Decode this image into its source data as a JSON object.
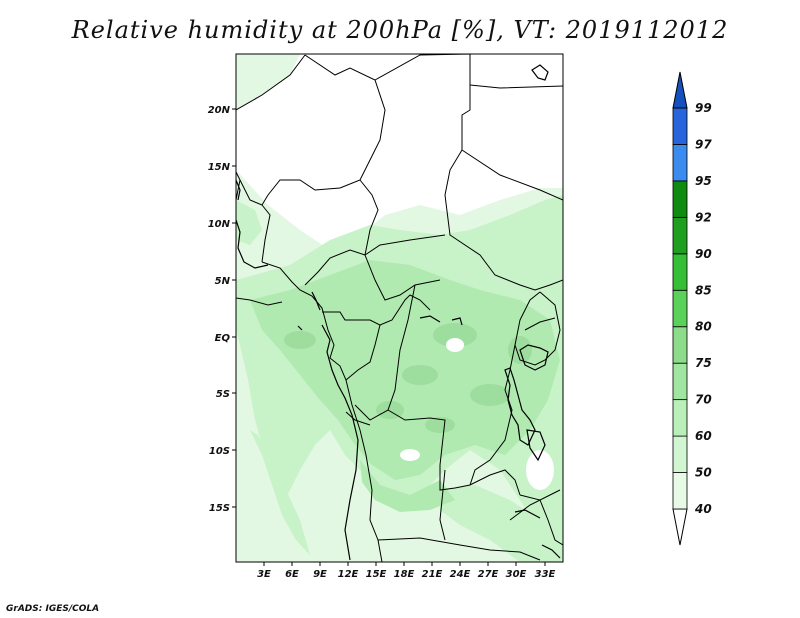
{
  "title": "Relative humidity at 200hPa [%], VT: 2019112012",
  "credit": "GrADS: IGES/COLA",
  "map": {
    "lat_labels": [
      "20N",
      "15N",
      "10N",
      "5N",
      "EQ",
      "5S",
      "10S",
      "15S"
    ],
    "lon_labels": [
      "3E",
      "6E",
      "9E",
      "12E",
      "15E",
      "18E",
      "21E",
      "24E",
      "27E",
      "30E",
      "33E"
    ]
  },
  "colorbar": {
    "levels": [
      "40",
      "50",
      "60",
      "70",
      "75",
      "80",
      "85",
      "90",
      "92",
      "95",
      "97",
      "99"
    ],
    "colors": [
      "#ffffff",
      "#e6fae6",
      "#d2f5d2",
      "#b9f0b9",
      "#a0e6a0",
      "#8cdc8c",
      "#5ad25a",
      "#37be37",
      "#1ea01e",
      "#0f8c0f",
      "#3c8cf0",
      "#2864dc",
      "#1450be"
    ]
  }
}
